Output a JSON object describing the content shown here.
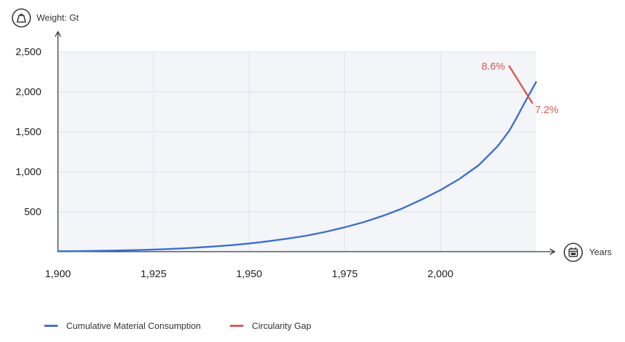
{
  "chart_data": {
    "type": "line",
    "ylabel": "Weight: Gt",
    "xlabel": "Years",
    "x_ticks": [
      1900,
      1925,
      1950,
      1975,
      2000
    ],
    "x_tick_labels": [
      "1,900",
      "1,925",
      "1,950",
      "1,975",
      "2,000"
    ],
    "y_ticks": [
      500,
      1000,
      1500,
      2000,
      2500
    ],
    "y_tick_labels": [
      "500",
      "1,000",
      "1,500",
      "2,000",
      "2,500"
    ],
    "xlim": [
      1900,
      2025
    ],
    "ylim": [
      0,
      2500
    ],
    "grid": true,
    "series": [
      {
        "name": "Cumulative Material Consumption",
        "color": "#3d6fce",
        "x": [
          1900,
          1905,
          1910,
          1915,
          1920,
          1925,
          1930,
          1935,
          1940,
          1945,
          1950,
          1955,
          1960,
          1965,
          1970,
          1975,
          1980,
          1985,
          1990,
          1995,
          2000,
          2005,
          2010,
          2015,
          2018,
          2020,
          2022,
          2025
        ],
        "values": [
          5,
          7,
          10,
          14,
          19,
          26,
          35,
          47,
          62,
          80,
          103,
          130,
          163,
          200,
          248,
          305,
          370,
          448,
          540,
          650,
          770,
          910,
          1080,
          1320,
          1510,
          1680,
          1860,
          2120
        ]
      },
      {
        "name": "Circularity Gap",
        "color": "#d9594c",
        "x": [
          2018,
          2024
        ],
        "values": [
          2320,
          1860
        ]
      }
    ],
    "annotations": [
      {
        "text": "8.6%",
        "x": 2018,
        "y": 2320,
        "color": "#d9594c"
      },
      {
        "text": "7.2%",
        "x": 2024,
        "y": 1860,
        "color": "#d9594c"
      }
    ],
    "legend": {
      "position": "bottom-left",
      "entries": [
        {
          "label": "Cumulative Material Consumption",
          "color": "#3d6fce"
        },
        {
          "label": "Circularity Gap",
          "color": "#d9594c"
        }
      ]
    }
  },
  "icons": {
    "y_axis": "weight-icon",
    "x_axis": "calendar-icon"
  }
}
